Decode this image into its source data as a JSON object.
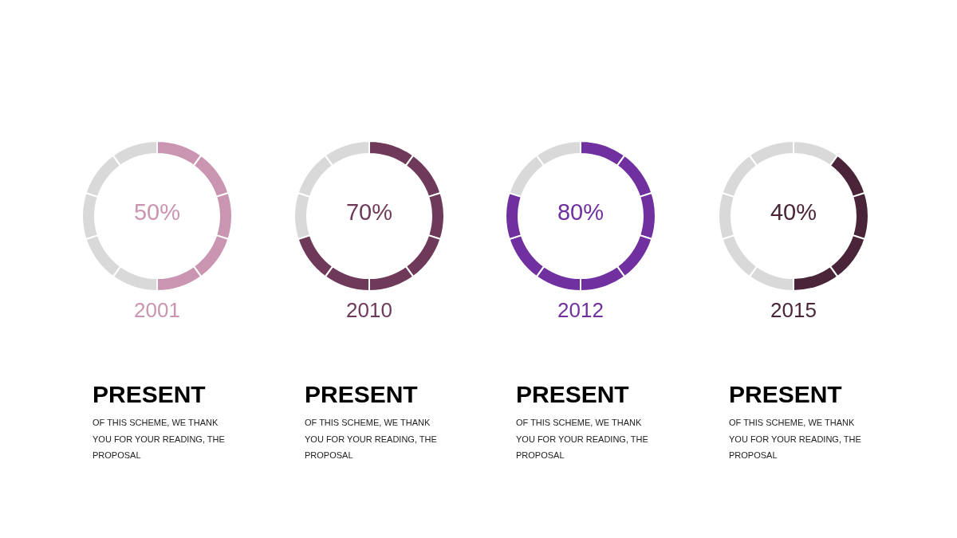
{
  "chart_data": [
    {
      "type": "donut",
      "title": "2001",
      "categories": [
        null,
        null,
        null,
        null,
        null,
        null,
        null,
        null,
        null,
        null
      ],
      "values": [
        10,
        10,
        10,
        10,
        10,
        10,
        10,
        10,
        10,
        10
      ],
      "colors": [
        "#c995b1",
        "#c995b1",
        "#c995b1",
        "#c995b1",
        "#c995b1",
        "#d9d9d9",
        "#d9d9d9",
        "#d9d9d9",
        "#d9d9d9",
        "#d9d9d9"
      ],
      "annotations": [
        "50%",
        "PRESENT",
        "OF THIS SCHEME, WE THANK YOU FOR YOUR READING, THE PROPOSAL"
      ]
    },
    {
      "type": "donut",
      "title": "2010",
      "categories": [
        null,
        null,
        null,
        null,
        null,
        null,
        null,
        null,
        null,
        null
      ],
      "values": [
        10,
        10,
        10,
        10,
        10,
        10,
        10,
        10,
        10,
        10
      ],
      "colors": [
        "#6f3a5a",
        "#6f3a5a",
        "#6f3a5a",
        "#6f3a5a",
        "#6f3a5a",
        "#6f3a5a",
        "#6f3a5a",
        "#d9d9d9",
        "#d9d9d9",
        "#d9d9d9"
      ],
      "annotations": [
        "70%",
        "PRESENT",
        "OF THIS SCHEME, WE THANK YOU FOR YOUR READING, THE PROPOSAL"
      ]
    },
    {
      "type": "donut",
      "title": "2012",
      "categories": [
        null,
        null,
        null,
        null,
        null,
        null,
        null,
        null,
        null,
        null
      ],
      "values": [
        10,
        10,
        10,
        10,
        10,
        10,
        10,
        10,
        10,
        10
      ],
      "colors": [
        "#7030a0",
        "#7030a0",
        "#7030a0",
        "#7030a0",
        "#7030a0",
        "#7030a0",
        "#7030a0",
        "#7030a0",
        "#d9d9d9",
        "#d9d9d9"
      ],
      "annotations": [
        "80%",
        "PRESENT",
        "OF THIS SCHEME, WE THANK YOU FOR YOUR READING, THE PROPOSAL"
      ]
    },
    {
      "type": "donut",
      "title": "2015",
      "categories": [
        null,
        null,
        null,
        null,
        null,
        null,
        null,
        null,
        null,
        null
      ],
      "values": [
        10,
        10,
        10,
        10,
        10,
        10,
        10,
        10,
        10,
        10
      ],
      "colors": [
        "#d9d9d9",
        "#4a2438",
        "#4a2438",
        "#4a2438",
        "#4a2438",
        "#d9d9d9",
        "#d9d9d9",
        "#d9d9d9",
        "#d9d9d9",
        "#d9d9d9"
      ],
      "annotations": [
        "40%",
        "PRESENT",
        "OF THIS SCHEME, WE THANK YOU FOR YOUR READING, THE PROPOSAL"
      ]
    }
  ]
}
